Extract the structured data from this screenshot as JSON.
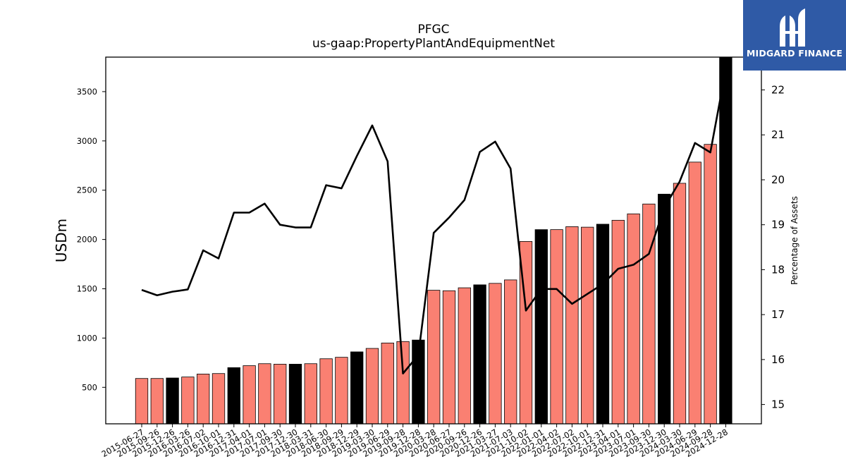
{
  "chart_data": {
    "type": "bar",
    "title": "PFGC",
    "subtitle": "us-gaap:PropertyPlantAndEquipmentNet",
    "ylabel": "USDm",
    "y2label": "Percentage of Assets",
    "ylim": [
      130,
      3850
    ],
    "y2lim": [
      14.57,
      22.73
    ],
    "yticks": [
      500,
      1000,
      1500,
      2000,
      2500,
      3000,
      3500
    ],
    "y2ticks": [
      15,
      16,
      17,
      18,
      19,
      20,
      21,
      22
    ],
    "colors": {
      "bar_quarter": "#fa8072",
      "bar_fiscal_year_end": "#000000",
      "line": "#000000",
      "bar_edge": "#000000"
    },
    "categories": [
      "2015-06-27",
      "2015-09-26",
      "2015-12-26",
      "2016-03-26",
      "2016-07-02",
      "2016-10-01",
      "2016-12-31",
      "2017-04-01",
      "2017-07-01",
      "2017-09-30",
      "2017-12-30",
      "2018-03-31",
      "2018-06-30",
      "2018-09-29",
      "2018-12-29",
      "2019-03-30",
      "2019-06-29",
      "2019-09-28",
      "2019-12-28",
      "2020-03-28",
      "2020-06-27",
      "2020-09-26",
      "2020-12-26",
      "2021-03-27",
      "2021-07-03",
      "2021-10-02",
      "2022-01-01",
      "2022-04-02",
      "2022-07-02",
      "2022-10-01",
      "2022-12-31",
      "2023-04-01",
      "2023-07-01",
      "2023-09-30",
      "2023-12-30",
      "2024-03-30",
      "2024-06-29",
      "2024-09-28",
      "2024-12-28"
    ],
    "series": [
      {
        "values": [
          590,
          590,
          595,
          605,
          635,
          640,
          700,
          720,
          740,
          735,
          735,
          740,
          790,
          805,
          860,
          895,
          950,
          965,
          980,
          1485,
          1480,
          1510,
          1540,
          1555,
          1590,
          1980,
          2100,
          2100,
          2130,
          2125,
          2155,
          2195,
          2260,
          2360,
          2460,
          2570,
          2785,
          2965,
          3850
        ],
        "highlight": [
          false,
          false,
          true,
          false,
          false,
          false,
          true,
          false,
          false,
          false,
          true,
          false,
          false,
          false,
          true,
          false,
          false,
          false,
          true,
          false,
          false,
          false,
          true,
          false,
          false,
          false,
          true,
          false,
          false,
          false,
          true,
          false,
          false,
          false,
          true,
          false,
          false,
          false,
          true
        ]
      },
      {
        "axis": "right",
        "values": [
          17.55,
          17.43,
          17.51,
          17.56,
          18.43,
          18.25,
          19.27,
          19.27,
          19.47,
          19.0,
          18.94,
          18.94,
          19.88,
          19.81,
          20.53,
          21.21,
          20.41,
          15.69,
          16.1,
          18.82,
          19.16,
          19.55,
          20.62,
          20.85,
          20.25,
          17.09,
          17.57,
          17.57,
          17.24,
          17.46,
          17.68,
          18.02,
          18.11,
          18.35,
          19.38,
          19.96,
          20.82,
          20.61,
          22.45
        ]
      }
    ]
  },
  "logo": {
    "text": "MIDGARD FINANCE",
    "mark": "midgard-logo-icon"
  }
}
